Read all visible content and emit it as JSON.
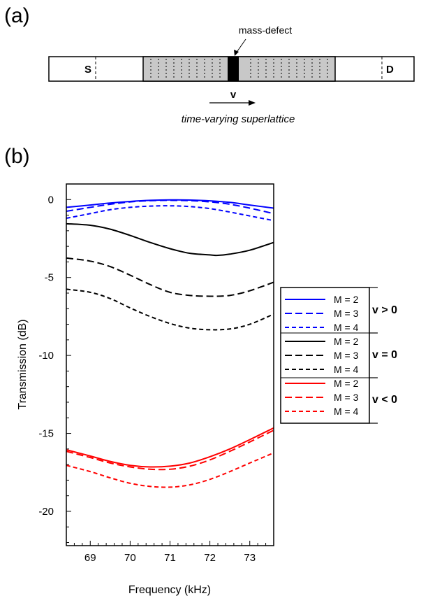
{
  "panel_a": {
    "label": "(a)",
    "annotation": "mass-defect",
    "source_label": "S",
    "detector_label": "D",
    "velocity_label": "v",
    "caption": "time-varying superlattice"
  },
  "panel_b": {
    "label": "(b)"
  },
  "chart_data": {
    "type": "line",
    "xlabel": "Frequency (kHz)",
    "ylabel": "Transmission (dB)",
    "xlim": [
      68.4,
      73.6
    ],
    "ylim": [
      -22.2,
      1.0
    ],
    "xticks": [
      69,
      70,
      71,
      72,
      73
    ],
    "yticks": [
      0,
      -5,
      -10,
      -15,
      -20
    ],
    "grid": false,
    "legend_placement": "right",
    "legend_groups": [
      {
        "label": "v > 0",
        "color": "#0000ff"
      },
      {
        "label": "v = 0",
        "color": "#000000"
      },
      {
        "label": "v < 0",
        "color": "#ff0000"
      }
    ],
    "series": [
      {
        "name": "M = 2",
        "group": "v > 0",
        "color": "#0000ff",
        "style": "solid",
        "x": [
          68.4,
          69.0,
          69.5,
          70.0,
          70.5,
          71.0,
          71.5,
          72.0,
          72.5,
          73.0,
          73.6
        ],
        "y": [
          -0.5,
          -0.35,
          -0.22,
          -0.12,
          -0.05,
          -0.02,
          -0.03,
          -0.08,
          -0.18,
          -0.35,
          -0.55
        ]
      },
      {
        "name": "M = 3",
        "group": "v > 0",
        "color": "#0000ff",
        "style": "dash",
        "x": [
          68.4,
          69.0,
          69.5,
          70.0,
          70.5,
          71.0,
          71.5,
          72.0,
          72.5,
          73.0,
          73.6
        ],
        "y": [
          -0.75,
          -0.5,
          -0.3,
          -0.15,
          -0.07,
          -0.05,
          -0.07,
          -0.15,
          -0.3,
          -0.55,
          -0.9
        ]
      },
      {
        "name": "M = 4",
        "group": "v > 0",
        "color": "#0000ff",
        "style": "short-dash",
        "x": [
          68.4,
          69.0,
          69.5,
          70.0,
          70.5,
          71.0,
          71.5,
          72.0,
          72.5,
          73.0,
          73.6
        ],
        "y": [
          -1.2,
          -0.9,
          -0.65,
          -0.5,
          -0.42,
          -0.4,
          -0.45,
          -0.58,
          -0.8,
          -1.05,
          -1.35
        ]
      },
      {
        "name": "M = 2",
        "group": "v = 0",
        "color": "#000000",
        "style": "solid",
        "x": [
          68.4,
          69.0,
          69.5,
          70.0,
          70.5,
          71.0,
          71.5,
          72.0,
          72.2,
          72.5,
          73.0,
          73.6
        ],
        "y": [
          -1.55,
          -1.65,
          -1.9,
          -2.3,
          -2.75,
          -3.15,
          -3.45,
          -3.55,
          -3.58,
          -3.5,
          -3.25,
          -2.75
        ]
      },
      {
        "name": "M = 3",
        "group": "v = 0",
        "color": "#000000",
        "style": "dash",
        "x": [
          68.4,
          69.0,
          69.5,
          70.0,
          70.5,
          71.0,
          71.5,
          72.0,
          72.5,
          73.0,
          73.6
        ],
        "y": [
          -3.75,
          -3.95,
          -4.3,
          -4.85,
          -5.45,
          -5.95,
          -6.15,
          -6.2,
          -6.15,
          -5.85,
          -5.3
        ]
      },
      {
        "name": "M = 4",
        "group": "v = 0",
        "color": "#000000",
        "style": "short-dash",
        "x": [
          68.4,
          69.0,
          69.5,
          70.0,
          70.5,
          71.0,
          71.5,
          72.0,
          72.5,
          73.0,
          73.6
        ],
        "y": [
          -5.75,
          -5.95,
          -6.35,
          -6.95,
          -7.5,
          -7.95,
          -8.25,
          -8.35,
          -8.3,
          -8.0,
          -7.35
        ]
      },
      {
        "name": "M = 2",
        "group": "v < 0",
        "color": "#ff0000",
        "style": "solid",
        "x": [
          68.4,
          69.0,
          69.5,
          70.0,
          70.5,
          71.0,
          71.5,
          72.0,
          72.5,
          73.0,
          73.6
        ],
        "y": [
          -16.05,
          -16.45,
          -16.8,
          -17.05,
          -17.15,
          -17.1,
          -16.9,
          -16.5,
          -16.0,
          -15.4,
          -14.65
        ]
      },
      {
        "name": "M = 3",
        "group": "v < 0",
        "color": "#ff0000",
        "style": "dash",
        "x": [
          68.4,
          69.0,
          69.5,
          70.0,
          70.5,
          71.0,
          71.5,
          72.0,
          72.5,
          73.0,
          73.6
        ],
        "y": [
          -16.15,
          -16.55,
          -16.9,
          -17.15,
          -17.3,
          -17.3,
          -17.1,
          -16.7,
          -16.15,
          -15.55,
          -14.8
        ]
      },
      {
        "name": "M = 4",
        "group": "v < 0",
        "color": "#ff0000",
        "style": "short-dash",
        "x": [
          68.4,
          69.0,
          69.5,
          70.0,
          70.5,
          71.0,
          71.5,
          72.0,
          72.5,
          73.0,
          73.6
        ],
        "y": [
          -17.05,
          -17.45,
          -17.85,
          -18.2,
          -18.4,
          -18.45,
          -18.3,
          -17.95,
          -17.45,
          -16.9,
          -16.25
        ]
      }
    ]
  }
}
